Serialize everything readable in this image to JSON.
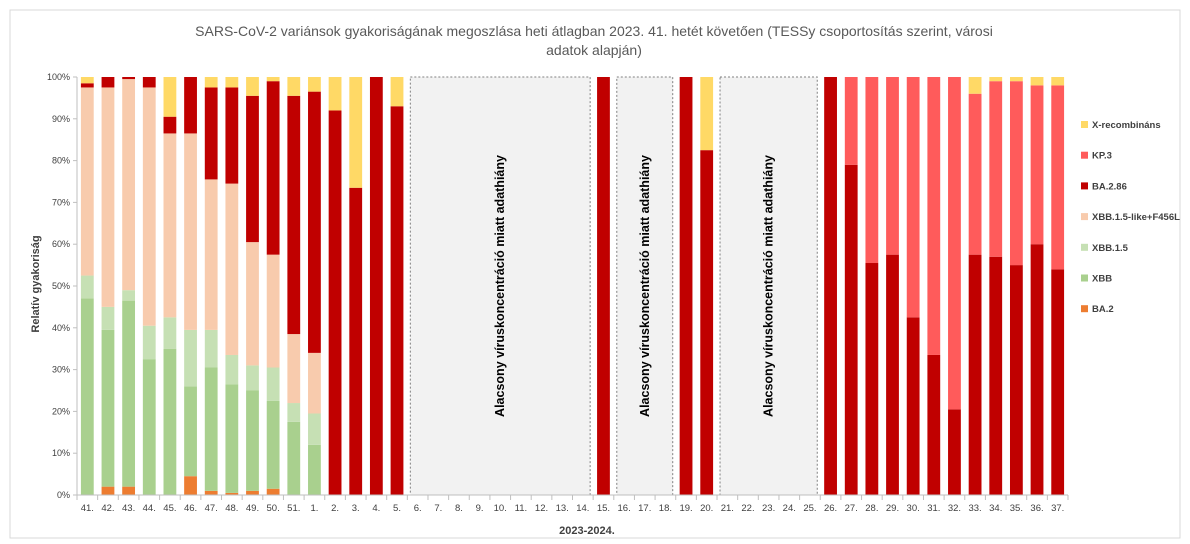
{
  "chart_data": {
    "type": "bar",
    "stacked": true,
    "title_lines": [
      "SARS-CoV-2 variánsok gyakoriságának megoszlása heti átlagban 2023. 41. hetét követően (TESSy csoportosítás szerint, városi",
      "adatok alapján)"
    ],
    "xlabel": "2023-2024.",
    "ylabel": "Relatív gyakoriság",
    "ylim": [
      0,
      100
    ],
    "yticks": [
      "0%",
      "10%",
      "20%",
      "30%",
      "40%",
      "50%",
      "60%",
      "70%",
      "80%",
      "90%",
      "100%"
    ],
    "grid": false,
    "legend_position": "right",
    "categories": [
      "41.",
      "42.",
      "43.",
      "44.",
      "45.",
      "46.",
      "47.",
      "48.",
      "49.",
      "50.",
      "51.",
      "1.",
      "2.",
      "3.",
      "4.",
      "5.",
      "6.",
      "7.",
      "8.",
      "9.",
      "10.",
      "11.",
      "12.",
      "13.",
      "14.",
      "15.",
      "16.",
      "17.",
      "18.",
      "19.",
      "20.",
      "21.",
      "22.",
      "23.",
      "24.",
      "25.",
      "26.",
      "27.",
      "28.",
      "29.",
      "30.",
      "31.",
      "32.",
      "33.",
      "34.",
      "35.",
      "36.",
      "37."
    ],
    "series": [
      {
        "name": "BA.2",
        "color": "#ED7D31",
        "values": [
          0,
          2,
          2,
          0,
          0,
          4.5,
          1,
          0.5,
          1,
          1.5,
          0,
          0,
          0,
          0,
          0,
          0,
          null,
          null,
          null,
          null,
          null,
          null,
          null,
          null,
          null,
          0,
          null,
          null,
          null,
          0,
          0,
          null,
          null,
          null,
          null,
          null,
          0,
          0,
          0,
          0,
          0,
          0,
          0,
          0,
          0,
          0,
          0,
          0
        ]
      },
      {
        "name": "XBB",
        "color": "#A9D08E",
        "values": [
          47,
          37.5,
          44.5,
          32.5,
          35,
          21.5,
          29.5,
          26,
          24,
          21,
          17.5,
          12,
          0,
          0,
          0,
          0,
          null,
          null,
          null,
          null,
          null,
          null,
          null,
          null,
          null,
          0,
          null,
          null,
          null,
          0,
          0,
          null,
          null,
          null,
          null,
          null,
          0,
          0,
          0,
          0,
          0,
          0,
          0,
          0,
          0,
          0,
          0,
          0
        ]
      },
      {
        "name": "XBB.1.5",
        "color": "#C6E0B4",
        "values": [
          5.5,
          5.5,
          2.5,
          8,
          7.5,
          13.5,
          9,
          7,
          6,
          8,
          4.5,
          7.5,
          0,
          0,
          0,
          0,
          null,
          null,
          null,
          null,
          null,
          null,
          null,
          null,
          null,
          0,
          null,
          null,
          null,
          0,
          0,
          null,
          null,
          null,
          null,
          null,
          0,
          0,
          0,
          0,
          0,
          0,
          0,
          0,
          0,
          0,
          0,
          0
        ]
      },
      {
        "name": "XBB.1.5-like+F456L",
        "color": "#F8CBAD",
        "values": [
          45,
          52.5,
          50.5,
          57,
          44,
          47,
          36,
          41,
          29.5,
          27,
          16.5,
          14.5,
          0,
          0,
          0,
          0,
          null,
          null,
          null,
          null,
          null,
          null,
          null,
          null,
          null,
          0,
          null,
          null,
          null,
          0,
          0,
          null,
          null,
          null,
          null,
          null,
          0,
          0,
          0,
          0,
          0,
          0,
          0,
          0,
          0,
          0,
          0,
          0
        ]
      },
      {
        "name": "BA.2.86",
        "color": "#C00000",
        "values": [
          1,
          2.5,
          0.5,
          2.5,
          4,
          13.5,
          22,
          23,
          35,
          41.5,
          57,
          62.5,
          92,
          73.5,
          100,
          93,
          null,
          null,
          null,
          null,
          null,
          null,
          null,
          null,
          null,
          100,
          null,
          null,
          null,
          100,
          82.5,
          null,
          null,
          null,
          null,
          null,
          100,
          79,
          55.5,
          57.5,
          42.5,
          33.5,
          20.5,
          57.5,
          57,
          55,
          60,
          54
        ]
      },
      {
        "name": "KP.3",
        "color": "#FF5B5B",
        "values": [
          0,
          0,
          0,
          0,
          0,
          0,
          0,
          0,
          0,
          0,
          0,
          0,
          0,
          0,
          0,
          0,
          null,
          null,
          null,
          null,
          null,
          null,
          null,
          null,
          null,
          0,
          null,
          null,
          null,
          0,
          0,
          null,
          null,
          null,
          null,
          null,
          0,
          21,
          44.5,
          42.5,
          57.5,
          66.5,
          79.5,
          38.5,
          42,
          44,
          38,
          44
        ]
      },
      {
        "name": "X-recombináns",
        "color": "#FFD966",
        "values": [
          1.5,
          0,
          0,
          0,
          9.5,
          0,
          2.5,
          2.5,
          4.5,
          1,
          4.5,
          3.5,
          8,
          26.5,
          0,
          7,
          null,
          null,
          null,
          null,
          null,
          null,
          null,
          null,
          null,
          0,
          null,
          null,
          null,
          0,
          17.5,
          null,
          null,
          null,
          null,
          null,
          0,
          0,
          0,
          0,
          0,
          0,
          0,
          4,
          1,
          1,
          2,
          2
        ]
      }
    ],
    "legend_order": [
      "X-recombináns",
      "KP.3",
      "BA.2.86",
      "XBB.1.5-like+F456L",
      "XBB.1.5",
      "XBB",
      "BA.2"
    ],
    "gap_annotations": [
      {
        "from": "6.",
        "to": "14.",
        "text": "Alacsony víruskoncentráció miatt adathiány"
      },
      {
        "from": "16.",
        "to": "18.",
        "text": "Alacsony víruskoncentráció miatt adathiány"
      },
      {
        "from": "21.",
        "to": "25.",
        "text": "Alacsony víruskoncentráció miatt adathiány"
      }
    ]
  }
}
